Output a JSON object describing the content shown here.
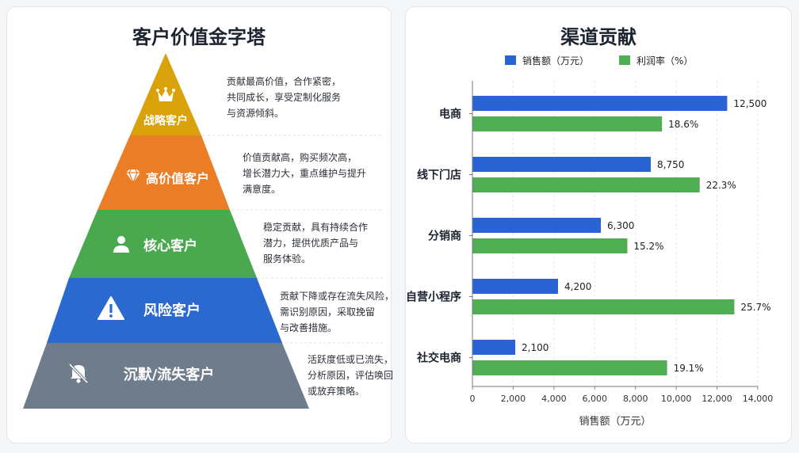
{
  "pyramid": {
    "title": "客户价值金字塔",
    "tiers": [
      {
        "label": "战略客户",
        "icon": "crown-icon",
        "color": "#d9a20b",
        "desc": [
          "贡献最高价值，合作紧密，",
          "共同成长，享受定制化服务",
          "与资源倾斜。"
        ]
      },
      {
        "label": "高价值客户",
        "icon": "diamond-icon",
        "color": "#ea7d25",
        "desc": [
          "价值贡献高，购买频次高，",
          "增长潜力大，重点维护与提升",
          "满意度。"
        ]
      },
      {
        "label": "核心客户",
        "icon": "user-icon",
        "color": "#4aa84f",
        "desc": [
          "稳定贡献，具有持续合作",
          "潜力，提供优质产品与",
          "服务体验。"
        ]
      },
      {
        "label": "风险客户",
        "icon": "warning-icon",
        "color": "#2a6ad0",
        "desc": [
          "贡献下降或存在流失风险，",
          "需识别原因，采取挽留",
          "与改善措施。"
        ]
      },
      {
        "label": "沉默/流失客户",
        "icon": "bell-off-icon",
        "color": "#6f7c8b",
        "desc": [
          "活跃度低或已流失，",
          "分析原因，评估唤回",
          "或放弃策略。"
        ]
      }
    ]
  },
  "chart_data": {
    "type": "bar",
    "orientation": "horizontal",
    "title": "渠道贡献",
    "categories": [
      "电商",
      "线下门店",
      "分销商",
      "自营小程序",
      "社交电商"
    ],
    "series": [
      {
        "name": "销售额（万元）",
        "color": "#2a63d4",
        "values": [
          12500,
          8750,
          6300,
          4200,
          2100
        ],
        "labels": [
          "12,500",
          "8,750",
          "6,300",
          "4,200",
          "2,100"
        ]
      },
      {
        "name": "利润率（%）",
        "color": "#4fae53",
        "values": [
          18.6,
          22.3,
          15.2,
          25.7,
          19.1
        ],
        "labels": [
          "18.6%",
          "22.3%",
          "15.2%",
          "25.7%",
          "19.1%"
        ]
      }
    ],
    "xlabel": "销售额（万元）",
    "xlim": [
      0,
      14000
    ],
    "xticks": [
      "0",
      "2,000",
      "4,000",
      "6,000",
      "8,000",
      "10,000",
      "12,000",
      "14,000"
    ],
    "grid": true,
    "legend_position": "top"
  }
}
